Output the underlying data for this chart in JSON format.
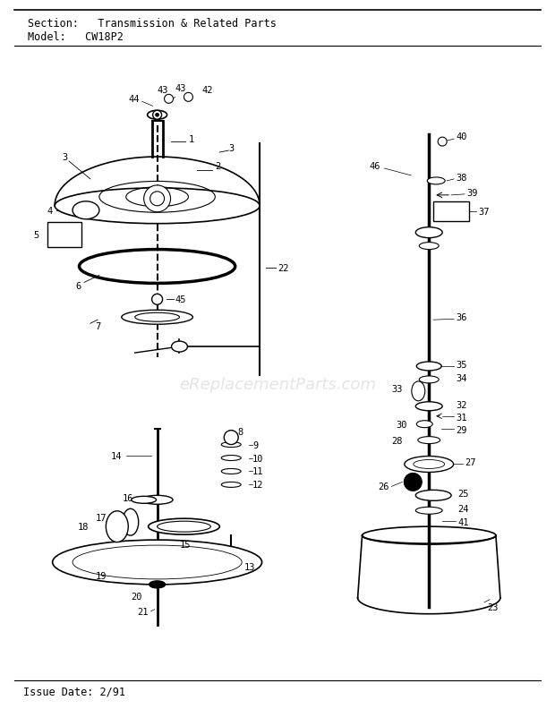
{
  "title_section": "Section:   Transmission & Related Parts",
  "title_model": "Model:   CW18P2",
  "issue_date": "Issue Date: 2/91",
  "bg_color": "#ffffff",
  "fg_color": "#000000",
  "watermark": "eReplacementParts.com",
  "fig_width": 6.2,
  "fig_height": 8.12,
  "dpi": 100
}
